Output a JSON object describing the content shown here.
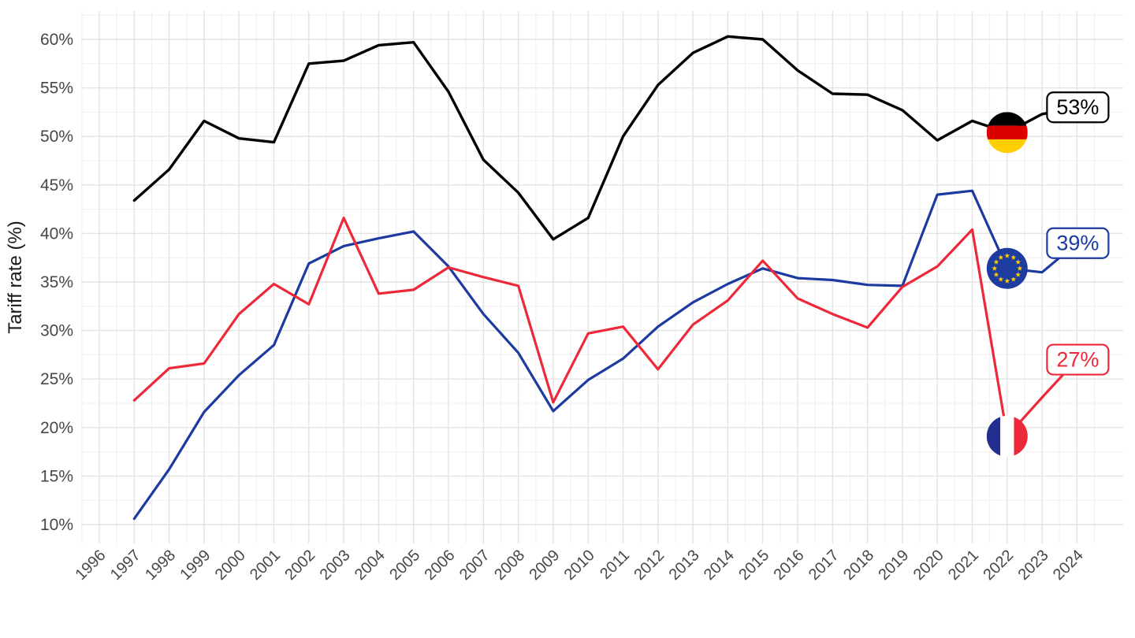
{
  "chart": {
    "y_axis_title": "Tariff rate (%)",
    "y_tick_labels": [
      "10%",
      "15%",
      "20%",
      "25%",
      "30%",
      "35%",
      "40%",
      "45%",
      "50%",
      "55%",
      "60%"
    ],
    "y_tick_values": [
      10,
      15,
      20,
      25,
      30,
      35,
      40,
      45,
      50,
      55,
      60
    ],
    "x_tick_labels": [
      "1996",
      "1997",
      "1998",
      "1999",
      "2000",
      "2001",
      "2002",
      "2003",
      "2004",
      "2005",
      "2006",
      "2007",
      "2008",
      "2009",
      "2010",
      "2011",
      "2012",
      "2013",
      "2014",
      "2015",
      "2016",
      "2017",
      "2018",
      "2019",
      "2020",
      "2021",
      "2022",
      "2023",
      "2024"
    ],
    "colors": {
      "germany_line": "#000000",
      "eu_line": "#1c3aa0",
      "france_line": "#ed2939",
      "grid_major": "#e3e3e3",
      "grid_minor": "#f0f0f0",
      "axis_text": "#474747",
      "label_box_fill": "#ffffff",
      "de_flag_black": "#000000",
      "de_flag_red": "#dd0000",
      "de_flag_gold": "#ffce00",
      "eu_flag_blue": "#1d3c9e",
      "eu_flag_star": "#ffcc00",
      "fr_flag_navy": "#232f8e",
      "fr_flag_white": "#ffffff",
      "fr_flag_red": "#ed2939"
    }
  },
  "chart_data": {
    "type": "line",
    "title": "",
    "xlabel": "",
    "ylabel": "Tariff rate (%)",
    "xlim": [
      1996,
      2024
    ],
    "ylim": [
      10,
      62.5
    ],
    "grid": "major and minor, light gray on white",
    "legend_position": "none (flag icons on lines, value labels at right end)",
    "x": [
      1997,
      1998,
      1999,
      2000,
      2001,
      2002,
      2003,
      2004,
      2005,
      2006,
      2007,
      2008,
      2009,
      2010,
      2011,
      2012,
      2013,
      2014,
      2015,
      2016,
      2017,
      2018,
      2019,
      2020,
      2021,
      2022,
      2023,
      2024
    ],
    "flag_marker_year": 2022,
    "series": [
      {
        "name": "Germany",
        "flag": "de",
        "color": "#000000",
        "end_label": "53%",
        "end_value": 53,
        "values": [
          43.4,
          46.6,
          51.6,
          49.8,
          49.4,
          57.5,
          57.8,
          59.4,
          59.7,
          54.6,
          47.6,
          44.2,
          39.4,
          41.6,
          50.0,
          55.3,
          58.6,
          60.3,
          60.0,
          56.8,
          54.4,
          54.3,
          52.7,
          49.6,
          51.6,
          50.4,
          52.3,
          53
        ]
      },
      {
        "name": "European Union",
        "flag": "eu",
        "color": "#1c3aa0",
        "end_label": "39%",
        "end_value": 39,
        "values": [
          10.6,
          15.7,
          21.6,
          25.4,
          28.5,
          36.9,
          38.7,
          39.5,
          40.2,
          36.6,
          31.7,
          27.7,
          21.7,
          24.9,
          27.1,
          30.4,
          32.9,
          34.8,
          36.4,
          35.4,
          35.2,
          34.7,
          34.6,
          44.0,
          44.4,
          36.4,
          36.0,
          39
        ]
      },
      {
        "name": "France",
        "flag": "fr",
        "color": "#ed2939",
        "end_label": "27%",
        "end_value": 27,
        "values": [
          22.8,
          26.1,
          26.6,
          31.7,
          34.8,
          32.7,
          41.6,
          33.8,
          34.2,
          36.5,
          35.5,
          34.6,
          22.6,
          29.7,
          30.4,
          26.0,
          30.6,
          33.1,
          37.2,
          33.3,
          31.7,
          30.3,
          34.5,
          36.6,
          40.4,
          19.1,
          23.1,
          27
        ]
      }
    ]
  }
}
